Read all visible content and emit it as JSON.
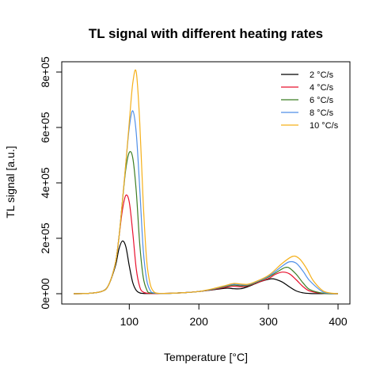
{
  "chart_data": {
    "type": "line",
    "title": "TL signal with different heating rates",
    "xlabel": "Temperature [°C]",
    "ylabel": "TL signal [a.u.]",
    "xlim": [
      20,
      400
    ],
    "ylim": [
      0,
      800000
    ],
    "x_ticks": [
      100,
      200,
      300,
      400
    ],
    "x_tick_labels": [
      "100",
      "200",
      "300",
      "400"
    ],
    "y_ticks": [
      0,
      200000,
      400000,
      600000,
      800000
    ],
    "y_tick_labels": [
      "0e+00",
      "2e+05",
      "4e+05",
      "6e+05",
      "8e+05"
    ],
    "grid": false,
    "legend_position": "top-right",
    "series": [
      {
        "name": "2 °C/s",
        "color": "#000000",
        "x": [
          20,
          40,
          60,
          70,
          80,
          85,
          90,
          95,
          100,
          105,
          110,
          115,
          120,
          130,
          150,
          180,
          200,
          220,
          240,
          250,
          260,
          270,
          280,
          290,
          300,
          305,
          310,
          320,
          330,
          340,
          350,
          360,
          380,
          400
        ],
        "y": [
          0,
          1000,
          8000,
          30000,
          100000,
          160000,
          190000,
          170000,
          100000,
          40000,
          12000,
          3000,
          1000,
          500,
          1000,
          4000,
          8000,
          14000,
          20000,
          18000,
          18000,
          25000,
          35000,
          45000,
          52000,
          54000,
          52000,
          42000,
          25000,
          10000,
          3000,
          800,
          100,
          0
        ]
      },
      {
        "name": "4 °C/s",
        "color": "#e8112d",
        "x": [
          20,
          40,
          60,
          70,
          80,
          85,
          90,
          95,
          100,
          105,
          110,
          115,
          120,
          130,
          150,
          180,
          200,
          220,
          240,
          250,
          260,
          270,
          280,
          300,
          310,
          320,
          330,
          340,
          350,
          360,
          380,
          400
        ],
        "y": [
          0,
          1000,
          8000,
          30000,
          110000,
          200000,
          300000,
          355000,
          330000,
          220000,
          90000,
          25000,
          6000,
          800,
          1000,
          4000,
          8000,
          15000,
          24000,
          27000,
          25000,
          28000,
          36000,
          55000,
          70000,
          78000,
          72000,
          50000,
          25000,
          9000,
          500,
          0
        ]
      },
      {
        "name": "6 °C/s",
        "color": "#3b7d23",
        "x": [
          20,
          40,
          60,
          70,
          80,
          85,
          90,
          95,
          100,
          105,
          110,
          115,
          120,
          125,
          130,
          150,
          180,
          200,
          220,
          240,
          250,
          260,
          270,
          280,
          300,
          320,
          325,
          330,
          340,
          350,
          360,
          380,
          400
        ],
        "y": [
          0,
          1000,
          8000,
          30000,
          110000,
          200000,
          330000,
          450000,
          510000,
          490000,
          370000,
          180000,
          60000,
          15000,
          3000,
          1000,
          4000,
          8000,
          16000,
          27000,
          31000,
          29000,
          30000,
          38000,
          60000,
          90000,
          95000,
          93000,
          70000,
          38000,
          14000,
          1000,
          0
        ]
      },
      {
        "name": "8 °C/s",
        "color": "#4f8fe8",
        "x": [
          20,
          40,
          60,
          70,
          80,
          85,
          90,
          95,
          100,
          105,
          110,
          115,
          120,
          125,
          130,
          135,
          150,
          180,
          200,
          220,
          240,
          250,
          260,
          270,
          280,
          300,
          320,
          330,
          340,
          350,
          360,
          380,
          400
        ],
        "y": [
          0,
          1000,
          8000,
          30000,
          110000,
          200000,
          330000,
          470000,
          600000,
          660000,
          580000,
          380000,
          160000,
          50000,
          12000,
          3000,
          1000,
          4000,
          8000,
          17000,
          29000,
          34000,
          32000,
          32000,
          40000,
          63000,
          100000,
          115000,
          110000,
          80000,
          45000,
          4000,
          0
        ]
      },
      {
        "name": "10 °C/s",
        "color": "#f5b01a",
        "x": [
          20,
          40,
          60,
          70,
          80,
          85,
          90,
          95,
          100,
          105,
          110,
          115,
          120,
          125,
          130,
          135,
          140,
          150,
          180,
          200,
          220,
          240,
          250,
          260,
          270,
          280,
          300,
          320,
          335,
          345,
          355,
          365,
          380,
          400
        ],
        "y": [
          0,
          1000,
          8000,
          30000,
          110000,
          200000,
          330000,
          470000,
          620000,
          760000,
          800000,
          620000,
          330000,
          120000,
          35000,
          8000,
          2000,
          1000,
          4000,
          8000,
          18000,
          31000,
          37000,
          35000,
          34000,
          42000,
          66000,
          110000,
          135000,
          125000,
          90000,
          45000,
          8000,
          0
        ]
      }
    ]
  }
}
